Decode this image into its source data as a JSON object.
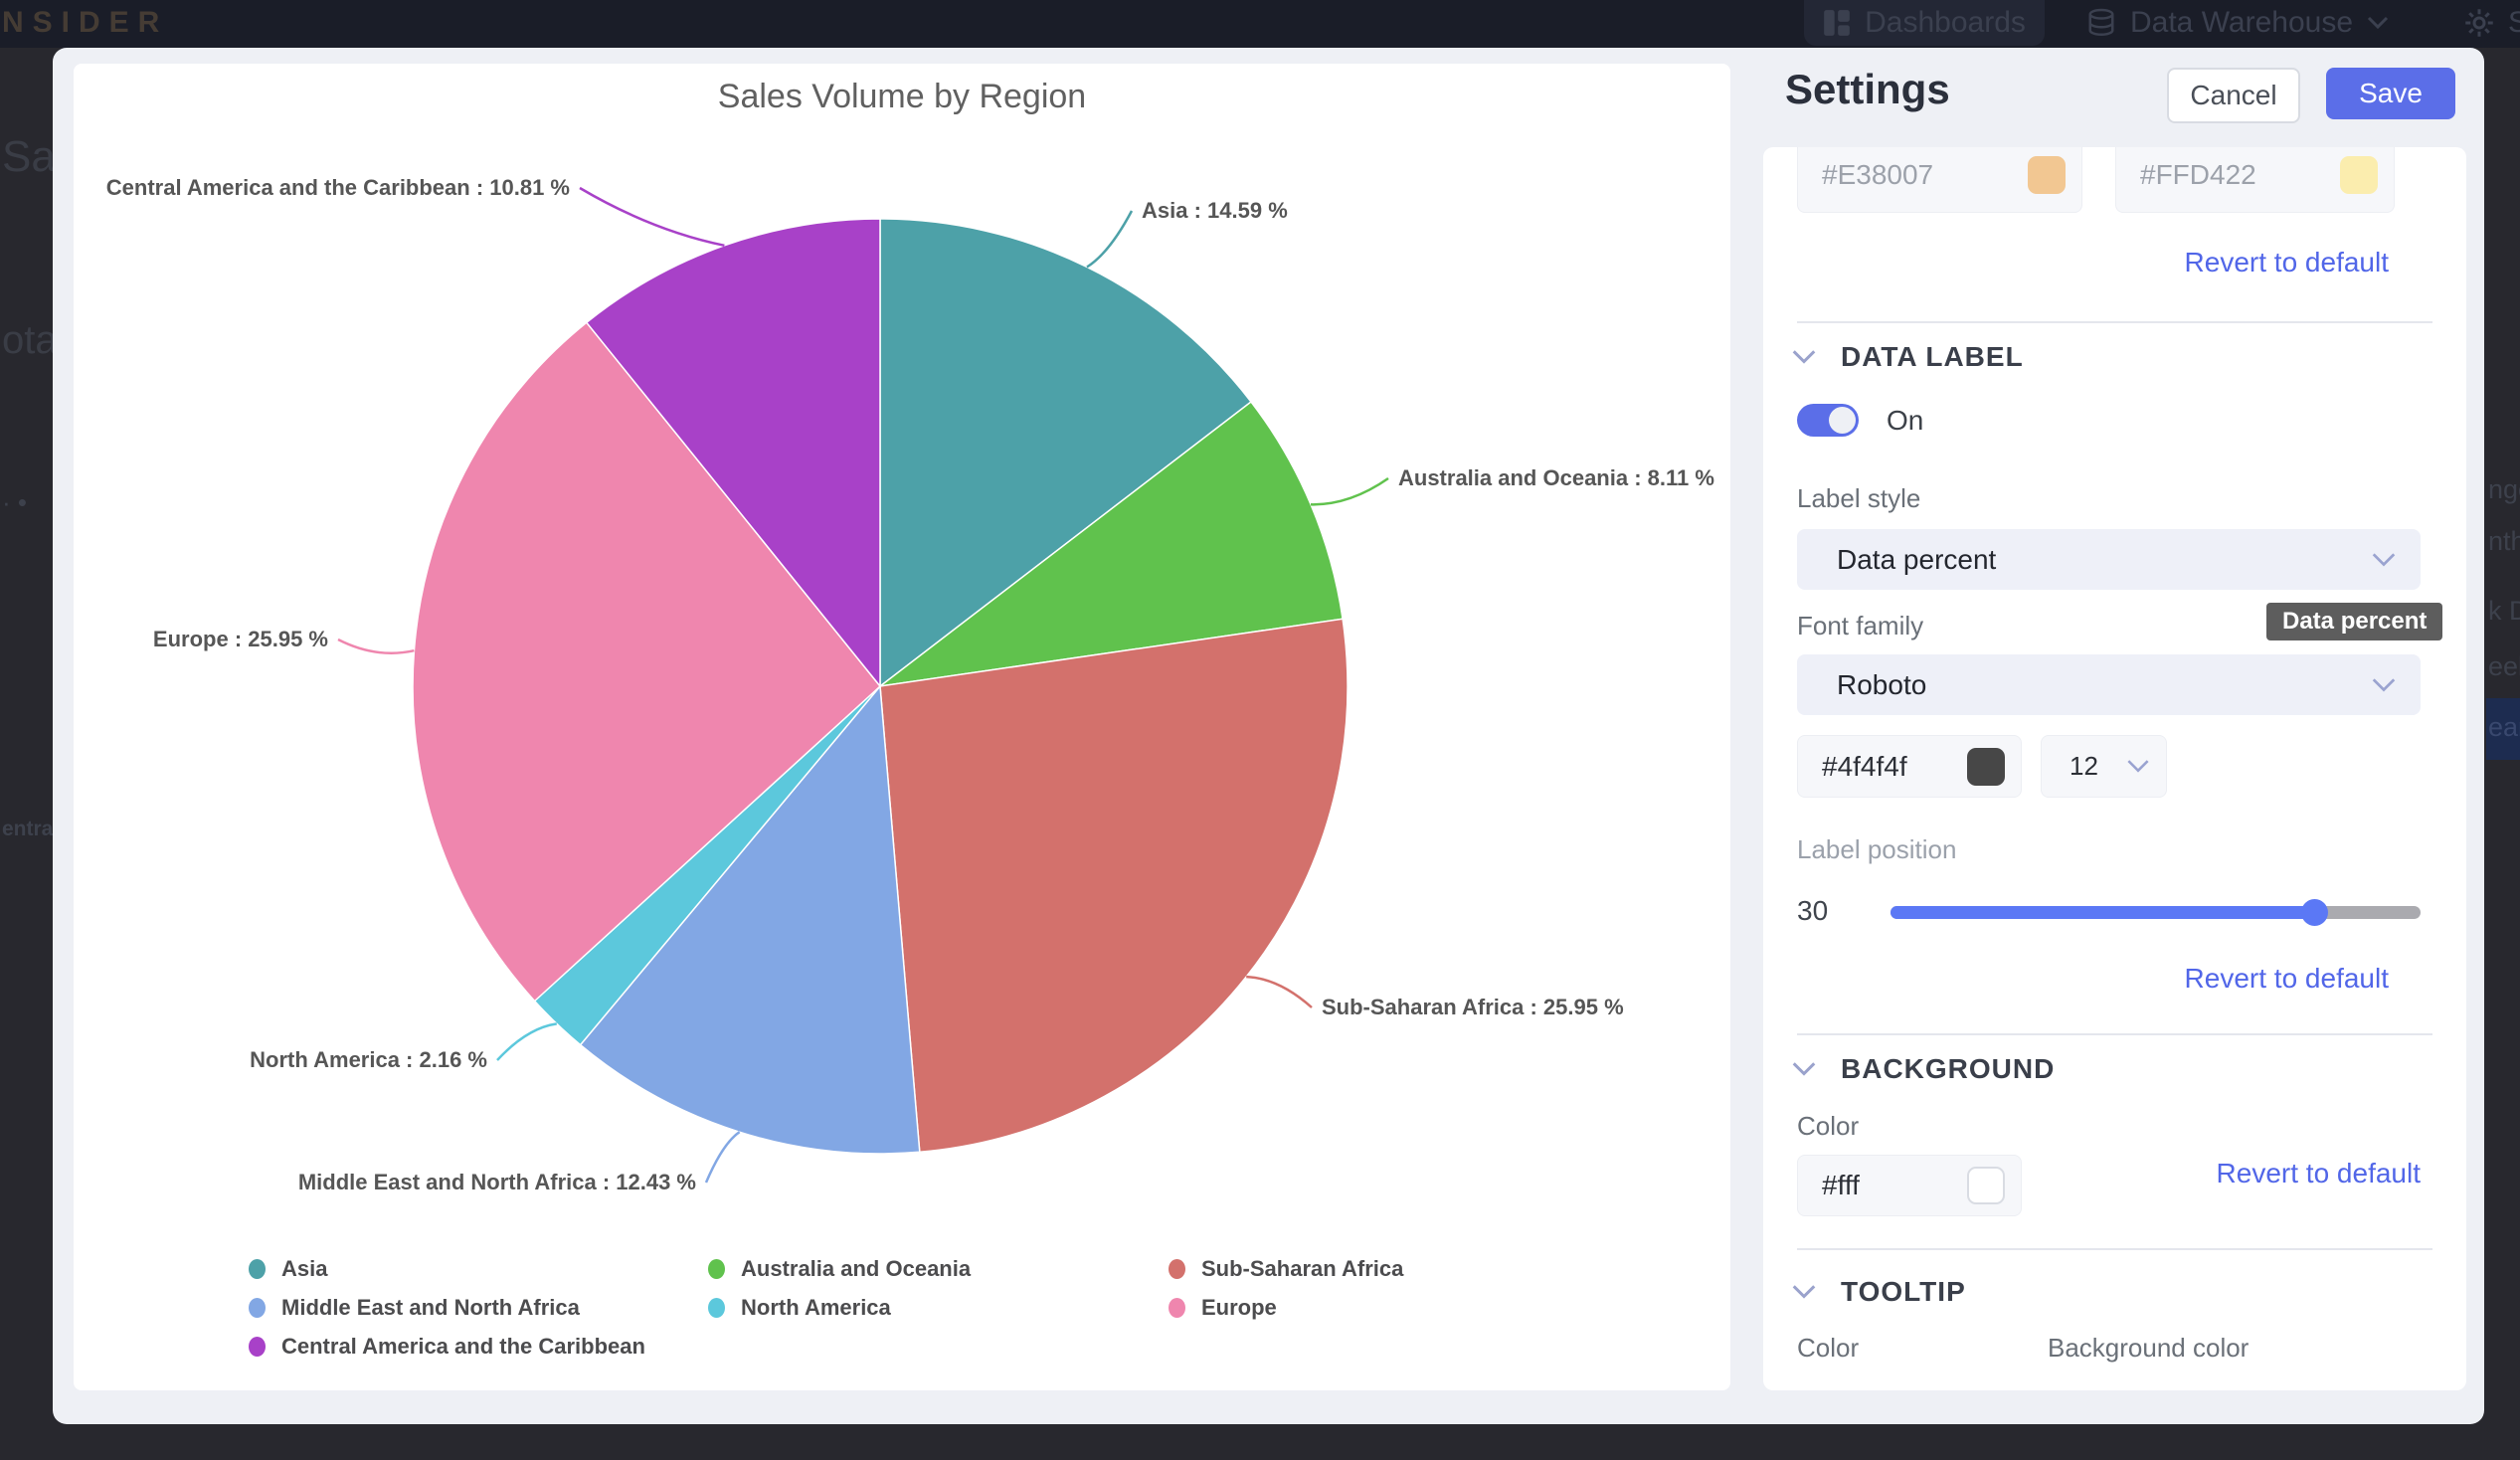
{
  "topbar": {
    "brand": "NSIDER",
    "dashboards_label": "Dashboards",
    "data_warehouse_label": "Data Warehouse",
    "settings_label": "Se"
  },
  "page_fragments": {
    "left": [
      "Sale",
      "ota",
      "· •",
      "entral"
    ],
    "right": [
      "nge",
      "nth",
      "k D",
      "eek",
      "ear"
    ]
  },
  "chart_data": {
    "type": "pie",
    "title": "Sales Volume by Region",
    "value_unit": "percent",
    "start_angle_deg": -90,
    "direction": "clockwise",
    "legend_position": "bottom",
    "series": [
      {
        "name": "Asia",
        "value": 14.59,
        "color": "#4da1a8",
        "label": "Asia : 14.59 %"
      },
      {
        "name": "Australia and Oceania",
        "value": 8.11,
        "color": "#60c24d",
        "label": "Australia and Oceania : 8.11 %"
      },
      {
        "name": "Sub-Saharan Africa",
        "value": 25.95,
        "color": "#d3716c",
        "label": "Sub-Saharan Africa : 25.95 %"
      },
      {
        "name": "Middle East and North Africa",
        "value": 12.43,
        "color": "#82a7e4",
        "label": "Middle East and North Africa : 12.43 %"
      },
      {
        "name": "North America",
        "value": 2.16,
        "color": "#5cc8dc",
        "label": "North America : 2.16 %"
      },
      {
        "name": "Europe",
        "value": 25.95,
        "color": "#ef86ae",
        "label": "Europe : 25.95 %"
      },
      {
        "name": "Central America and the Caribbean",
        "value": 10.81,
        "color": "#a841c8",
        "label": "Central America and the Caribbean : 10.81 %"
      }
    ]
  },
  "settings": {
    "title": "Settings",
    "cancel_label": "Cancel",
    "save_label": "Save",
    "revert_label": "Revert to default",
    "accent_color": "#5b6ee8",
    "series_colors": {
      "color1": "#E38007",
      "color1_swatch": "#f2c792",
      "color2": "#FFD422",
      "color2_swatch": "#fbedae"
    },
    "data_label": {
      "section_title": "DATA LABEL",
      "toggle_on": true,
      "toggle_label": "On",
      "label_style_label": "Label style",
      "label_style_value": "Data percent",
      "tooltip_text": "Data percent",
      "font_family_label": "Font family",
      "font_family_value": "Roboto",
      "font_color_value": "#4f4f4f",
      "font_color_swatch": "#474747",
      "font_size_value": "12",
      "label_position_label": "Label position",
      "label_position_value": "30"
    },
    "background": {
      "section_title": "BACKGROUND",
      "color_label": "Color",
      "color_value": "#fff",
      "color_swatch": "#ffffff"
    },
    "tooltip": {
      "section_title": "TOOLTIP",
      "color_label": "Color",
      "background_color_label": "Background color"
    }
  }
}
